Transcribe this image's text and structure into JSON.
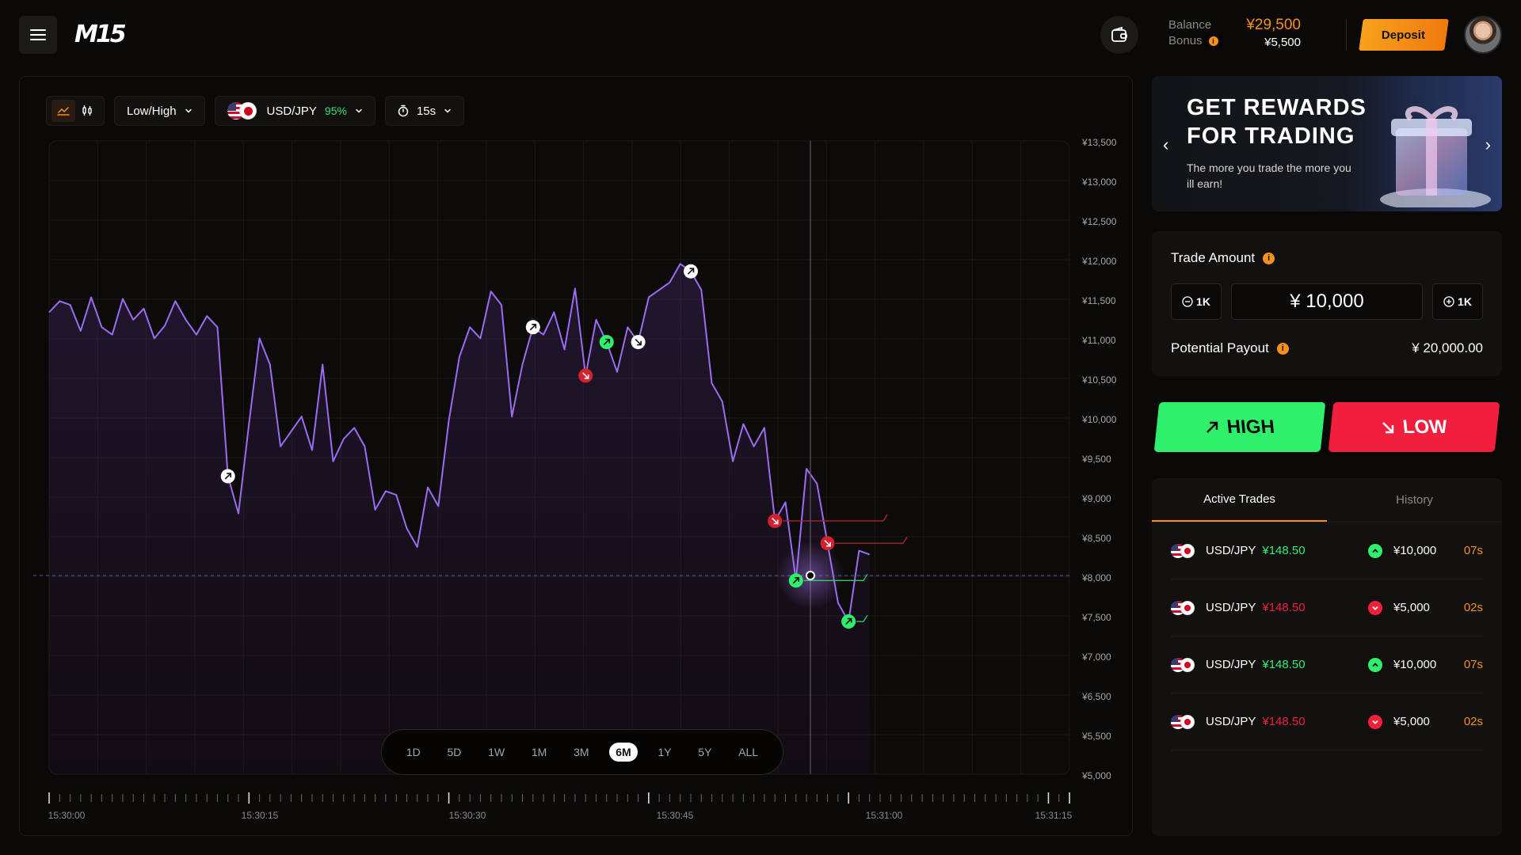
{
  "header": {
    "logo": "M15",
    "balance_label": "Balance",
    "bonus_label": "Bonus",
    "balance_value": "¥29,500",
    "bonus_value": "¥5,500",
    "deposit_label": "Deposit"
  },
  "toolbar": {
    "mode_label": "Low/High",
    "pair_label": "USD/JPY",
    "pair_payout": "95%",
    "timer_label": "15s"
  },
  "chart_data": {
    "type": "line",
    "x_ticks": [
      "15:30:00",
      "15:30:15",
      "15:30:30",
      "15:30:45",
      "15:31:00",
      "15:31:15"
    ],
    "y_ticks": [
      "¥13,500",
      "¥13,000",
      "¥12,500",
      "¥12,000",
      "¥11,500",
      "¥11,000",
      "¥10,500",
      "¥10,000",
      "¥9,500",
      "¥9,000",
      "¥8,500",
      "¥8,000",
      "¥7,500",
      "¥7,000",
      "¥6,500",
      "¥5,500",
      "¥5,000"
    ],
    "x": [
      0,
      1,
      2,
      3,
      4,
      5,
      6,
      7,
      8,
      9,
      10,
      11,
      12,
      13,
      14,
      15,
      16,
      17,
      18,
      19,
      20,
      21,
      22,
      23,
      24,
      25,
      26,
      27,
      28,
      29,
      30,
      31,
      32,
      33,
      34,
      35,
      36,
      37,
      38,
      39,
      40,
      41,
      42,
      43,
      44,
      45,
      46,
      47,
      48,
      49,
      50,
      51,
      52,
      53,
      54,
      55,
      56,
      57,
      58,
      59,
      60,
      61,
      62,
      63,
      64,
      65,
      66,
      67,
      68,
      69,
      70,
      71,
      72,
      73,
      74,
      75,
      76,
      77,
      78
    ],
    "y": [
      11200,
      11350,
      11300,
      10950,
      11400,
      11000,
      10900,
      11380,
      11100,
      11250,
      10850,
      11020,
      11350,
      11100,
      10900,
      11150,
      11000,
      9000,
      8500,
      9700,
      10850,
      10500,
      9400,
      9600,
      9800,
      9350,
      10500,
      9200,
      9500,
      9650,
      9400,
      8550,
      8800,
      8750,
      8300,
      8050,
      8850,
      8600,
      9750,
      10600,
      11000,
      10850,
      11480,
      11300,
      9800,
      10500,
      11000,
      10900,
      11200,
      10700,
      11520,
      10350,
      11100,
      10800,
      10400,
      11000,
      10800,
      11400,
      11500,
      11600,
      11850,
      11750,
      11500,
      10250,
      10000,
      9200,
      9700,
      9400,
      9650,
      8400,
      8650,
      7600,
      9100,
      8900,
      8100,
      7300,
      7050,
      8000,
      7950
    ],
    "ylim": [
      5000,
      13500
    ],
    "grid": true,
    "markers": [
      {
        "i": 17,
        "dir": "up",
        "style": "white"
      },
      {
        "i": 46,
        "dir": "up",
        "style": "white"
      },
      {
        "i": 51,
        "dir": "down",
        "style": "red"
      },
      {
        "i": 53,
        "dir": "up",
        "style": "green"
      },
      {
        "i": 56,
        "dir": "down",
        "style": "white"
      },
      {
        "i": 61,
        "dir": "up",
        "style": "white"
      },
      {
        "i": 71,
        "dir": "up",
        "style": "green",
        "line": true
      },
      {
        "i": 69,
        "dir": "down",
        "style": "red",
        "line": true
      },
      {
        "i": 74,
        "dir": "down",
        "style": "red",
        "line": true
      },
      {
        "i": 76,
        "dir": "up",
        "style": "green",
        "line": true
      }
    ]
  },
  "ranges": [
    "1D",
    "5D",
    "1W",
    "1M",
    "3M",
    "6M",
    "1Y",
    "5Y",
    "ALL"
  ],
  "active_range": "6M",
  "promo": {
    "title_line1": "GET REWARDS",
    "title_line2": "FOR TRADING",
    "text": "The more you trade the more you ill earn!"
  },
  "trade": {
    "amount_label": "Trade Amount",
    "minus_label": "1K",
    "plus_label": "1K",
    "amount_value": "¥ 10,000",
    "payout_label": "Potential Payout",
    "payout_value": "¥ 20,000.00",
    "high_label": "HIGH",
    "low_label": "LOW"
  },
  "trades": {
    "tab_active": "Active Trades",
    "tab_history": "History",
    "rows": [
      {
        "pair": "USD/JPY",
        "price": "¥148.50",
        "dir": "up",
        "amount": "¥10,000",
        "time": "07s"
      },
      {
        "pair": "USD/JPY",
        "price": "¥148.50",
        "dir": "down",
        "amount": "¥5,000",
        "time": "02s"
      },
      {
        "pair": "USD/JPY",
        "price": "¥148.50",
        "dir": "up",
        "amount": "¥10,000",
        "time": "07s"
      },
      {
        "pair": "USD/JPY",
        "price": "¥148.50",
        "dir": "down",
        "amount": "¥5,000",
        "time": "02s"
      }
    ]
  },
  "colors": {
    "accent": "#f6901e",
    "up": "#2ff06b",
    "down": "#f01f3d",
    "line": "#9b6cf0"
  }
}
